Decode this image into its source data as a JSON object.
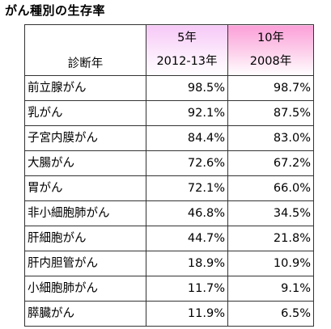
{
  "title": "がん種別の生存率",
  "header": {
    "row_label": "診断年",
    "col1_top": "5年",
    "col1_bottom": "2012-13年",
    "col2_top": "10年",
    "col2_bottom": "2008年"
  },
  "rows": [
    {
      "name": "前立腺がん",
      "five_year": "98.5%",
      "ten_year": "98.7%"
    },
    {
      "name": "乳がん",
      "five_year": "92.1%",
      "ten_year": "87.5%"
    },
    {
      "name": "子宮内膜がん",
      "five_year": "84.4%",
      "ten_year": "83.0%"
    },
    {
      "name": "大腸がん",
      "five_year": "72.6%",
      "ten_year": "67.2%"
    },
    {
      "name": "胃がん",
      "five_year": "72.1%",
      "ten_year": "66.0%"
    },
    {
      "name": "非小細胞肺がん",
      "five_year": "46.8%",
      "ten_year": "34.5%"
    },
    {
      "name": "肝細胞がん",
      "five_year": "44.7%",
      "ten_year": "21.8%"
    },
    {
      "name": "肝内胆管がん",
      "five_year": "18.9%",
      "ten_year": "10.9%"
    },
    {
      "name": "小細胞肺がん",
      "five_year": "11.7%",
      "ten_year": "9.1%"
    },
    {
      "name": "膵臓がん",
      "five_year": "11.9%",
      "ten_year": "6.5%"
    }
  ],
  "colors": {
    "header_5yr": "#f6c8f6",
    "header_10yr": "#fb9fd8"
  }
}
